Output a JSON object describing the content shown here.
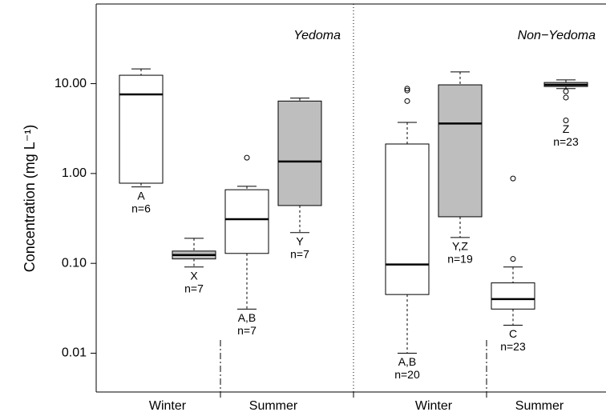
{
  "chart_data": {
    "type": "box",
    "ylabel": "Concentration  (mg L⁻¹)",
    "log_scale": true,
    "ylim": [
      0.0037,
      77
    ],
    "yticks": [
      0.01,
      {
        "value": 0.1,
        "label": "0.10"
      },
      {
        "value": 1,
        "label": "1.00"
      },
      {
        "value": 10,
        "label": "10.00"
      }
    ],
    "categories": [
      "Winter",
      "Summer",
      "Winter",
      "Summer"
    ],
    "groups": [
      "Yedoma",
      "Non−Yedoma"
    ],
    "boxes": [
      {
        "color": "#ffffff",
        "whislo": 0.71,
        "q1": 0.78,
        "med": 7.6,
        "q3": 12.4,
        "whishi": 14.6,
        "fliers": [],
        "label": "A",
        "n": "n=6"
      },
      {
        "color": "#bebebe",
        "whislo": 0.091,
        "q1": 0.112,
        "med": 0.124,
        "q3": 0.137,
        "whishi": 0.19,
        "fliers": [],
        "label": "X",
        "n": "n=7"
      },
      {
        "color": "#ffffff",
        "whislo": 0.031,
        "q1": 0.129,
        "med": 0.31,
        "q3": 0.66,
        "whishi": 0.72,
        "fliers": [
          1.5
        ],
        "label": "A,B",
        "n": "n=7"
      },
      {
        "color": "#bebebe",
        "whislo": 0.22,
        "q1": 0.44,
        "med": 1.36,
        "q3": 6.4,
        "whishi": 6.9,
        "fliers": [],
        "label": "Y",
        "n": "n=7"
      },
      {
        "color": "#ffffff",
        "whislo": 0.01,
        "q1": 0.045,
        "med": 0.097,
        "q3": 2.13,
        "whishi": 3.7,
        "fliers": [
          8.8,
          8.4,
          6.4
        ],
        "label": "A,B",
        "n": "n=20"
      },
      {
        "color": "#bebebe",
        "whislo": 0.194,
        "q1": 0.33,
        "med": 3.6,
        "q3": 9.7,
        "whishi": 13.5,
        "fliers": [],
        "label": "Y,Z",
        "n": "n=19"
      },
      {
        "color": "#ffffff",
        "whislo": 0.0205,
        "q1": 0.031,
        "med": 0.04,
        "q3": 0.0606,
        "whishi": 0.091,
        "fliers": [
          0.88,
          0.112
        ],
        "label": "C",
        "n": "n=23"
      },
      {
        "color": "#bebebe",
        "whislo": 8.8,
        "q1": 9.3,
        "med": 9.7,
        "q3": 10.3,
        "whishi": 11,
        "fliers": [
          8.2,
          7.0,
          3.9
        ],
        "label": "Z",
        "n": "n=23"
      }
    ]
  }
}
